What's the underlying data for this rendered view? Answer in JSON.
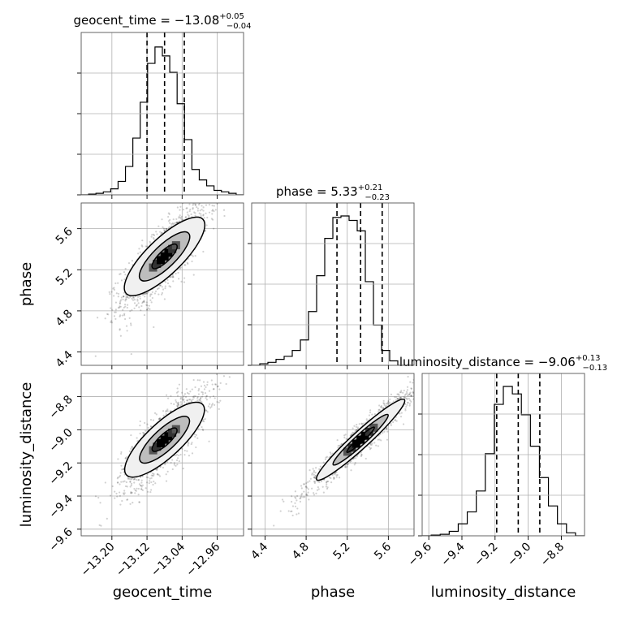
{
  "chart_data": {
    "type": "corner",
    "parameters": [
      "geocent_time",
      "phase",
      "luminosity_distance"
    ],
    "titles": [
      {
        "base": "geocent_time = −13.08",
        "sup": "+0.05",
        "sub": "−0.04"
      },
      {
        "base": "phase = 5.33",
        "sup": "+0.21",
        "sub": "−0.23"
      },
      {
        "base": "luminosity_distance = −9.06",
        "sup": "+0.13",
        "sub": "−0.13"
      }
    ],
    "ranges": [
      [
        -13.27,
        -12.9
      ],
      [
        4.27,
        5.85
      ],
      [
        -9.64,
        -8.66
      ]
    ],
    "ticks": [
      [
        -13.2,
        -13.12,
        -13.04,
        -12.96
      ],
      [
        4.4,
        4.8,
        5.2,
        5.6
      ],
      [
        -9.6,
        -9.4,
        -9.2,
        -9.0,
        -8.8
      ]
    ],
    "tick_labels": [
      [
        "−13.20",
        "−13.12",
        "−13.04",
        "−12.96"
      ],
      [
        "4.4",
        "4.8",
        "5.2",
        "5.6"
      ],
      [
        "−9.6",
        "−9.4",
        "−9.2",
        "−9.0",
        "−8.8"
      ]
    ],
    "quantiles": [
      [
        -13.12,
        -13.08,
        -13.035
      ],
      [
        5.1,
        5.33,
        5.54
      ],
      [
        -9.19,
        -9.06,
        -8.93
      ]
    ],
    "histograms": [
      [
        0,
        0.005,
        0.01,
        0.02,
        0.04,
        0.09,
        0.19,
        0.38,
        0.62,
        0.88,
        0.99,
        0.93,
        0.82,
        0.61,
        0.37,
        0.17,
        0.1,
        0.06,
        0.03,
        0.02,
        0.01,
        0
      ],
      [
        0,
        0.01,
        0.02,
        0.04,
        0.06,
        0.1,
        0.17,
        0.36,
        0.6,
        0.85,
        0.99,
        1.0,
        0.97,
        0.9,
        0.56,
        0.27,
        0.1,
        0.03,
        0,
        0
      ],
      [
        0,
        0.005,
        0.01,
        0.03,
        0.08,
        0.16,
        0.3,
        0.55,
        0.88,
        1.0,
        0.95,
        0.81,
        0.6,
        0.39,
        0.2,
        0.08,
        0.02,
        0
      ]
    ],
    "correlations": {
      "1_0": 0.8,
      "2_0": 0.8,
      "2_1": 0.96
    },
    "sigma_levels": [
      0.5,
      1.0,
      1.6
    ],
    "grid": true
  }
}
